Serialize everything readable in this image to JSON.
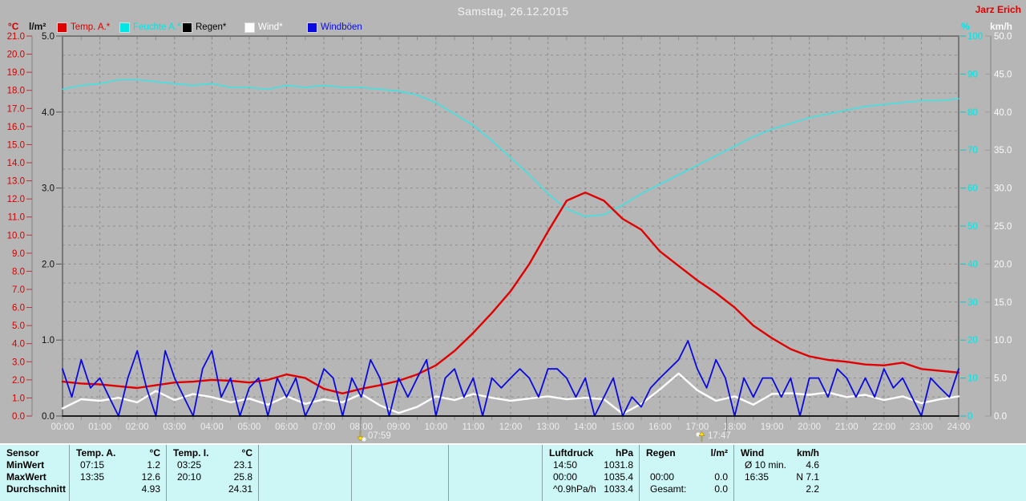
{
  "header": {
    "title": "Samstag, 26.12.2015",
    "station": "Jarz Erich",
    "unit_temp": "°C",
    "unit_rain": "l/m²",
    "unit_humidity": "%",
    "unit_wind": "km/h"
  },
  "legend": [
    {
      "label": "Temp. A.*",
      "color": "#dd0000"
    },
    {
      "label": "Feuchte A.*",
      "color": "#00e5e5"
    },
    {
      "label": "Regen*",
      "color": "#000000"
    },
    {
      "label": "Wind*",
      "color": "#ffffff"
    },
    {
      "label": "Windböen",
      "color": "#0a0ae0"
    }
  ],
  "markers": [
    {
      "time": "07:59",
      "hour": 7.983,
      "icon": "sun-down-icon"
    },
    {
      "time": "17:47",
      "hour": 17.783,
      "icon": "sun-up-icon"
    }
  ],
  "chart_data": {
    "type": "line",
    "title": "Samstag, 26.12.2015",
    "grid": true,
    "x_axis": {
      "min_hour": 0,
      "max_hour": 24,
      "labels": [
        "00:00",
        "01:00",
        "02:00",
        "03:00",
        "04:00",
        "05:00",
        "06:00",
        "07:00",
        "08:00",
        "09:00",
        "10:00",
        "11:00",
        "12:00",
        "13:00",
        "14:00",
        "15:00",
        "16:00",
        "17:00",
        "18:00",
        "19:00",
        "20:00",
        "21:00",
        "22:00",
        "23:00",
        "24:00"
      ]
    },
    "axes": {
      "temp_c": {
        "title": "°C",
        "min": 0,
        "max": 21,
        "color": "#d40000",
        "tick_labels": [
          "0.0",
          "1.0",
          "2.0",
          "3.0",
          "4.0",
          "5.0",
          "6.0",
          "7.0",
          "8.0",
          "9.0",
          "10.0",
          "11.0",
          "12.0",
          "13.0",
          "14.0",
          "15.0",
          "16.0",
          "17.0",
          "18.0",
          "19.0",
          "20.0",
          "21.0"
        ]
      },
      "rain_lm2": {
        "title": "l/m²",
        "min": 0,
        "max": 5,
        "color": "#111111",
        "tick_labels": [
          "0.0",
          "1.0",
          "2.0",
          "3.0",
          "4.0",
          "5.0"
        ]
      },
      "humidity_pct": {
        "title": "%",
        "min": 0,
        "max": 100,
        "color": "#00e5e5",
        "tick_labels": [
          "0",
          "10",
          "20",
          "30",
          "40",
          "50",
          "60",
          "70",
          "80",
          "90",
          "100"
        ]
      },
      "wind_kmh": {
        "title": "km/h",
        "min": 0,
        "max": 50,
        "color": "#fafafa",
        "tick_labels": [
          "0.0",
          "5.0",
          "10.0",
          "15.0",
          "20.0",
          "25.0",
          "30.0",
          "35.0",
          "40.0",
          "45.0",
          "50.0"
        ]
      }
    },
    "series": [
      {
        "name": "Feuchte A.",
        "axis": "humidity_pct",
        "color": "#3fe2e2",
        "width": 1.6,
        "x_step_hours": 0.5,
        "values": [
          86,
          87,
          87.5,
          88.5,
          88.5,
          88,
          87.5,
          87,
          87.5,
          86.5,
          86.5,
          86,
          87,
          86.5,
          87,
          86.5,
          86.5,
          86,
          85.5,
          84.5,
          82.5,
          79.5,
          76.5,
          72.5,
          68,
          63.5,
          58.5,
          54.5,
          52.5,
          53,
          55.5,
          58.5,
          61,
          63.5,
          66,
          68.5,
          71,
          73.5,
          75.5,
          77,
          78.5,
          79.5,
          80.5,
          81.5,
          82,
          82.5,
          83,
          83,
          83.5
        ]
      },
      {
        "name": "Temp. A.",
        "axis": "temp_c",
        "color": "#e00000",
        "width": 2.4,
        "x_step_hours": 0.5,
        "values": [
          1.9,
          1.8,
          1.75,
          1.65,
          1.55,
          1.7,
          1.85,
          1.9,
          2.0,
          1.95,
          1.85,
          2.0,
          2.3,
          2.1,
          1.5,
          1.25,
          1.5,
          1.7,
          1.95,
          2.3,
          2.8,
          3.6,
          4.6,
          5.7,
          6.9,
          8.4,
          10.2,
          11.9,
          12.35,
          11.9,
          10.9,
          10.3,
          9.1,
          8.3,
          7.5,
          6.8,
          6.0,
          5.0,
          4.3,
          3.7,
          3.3,
          3.1,
          3.0,
          2.85,
          2.8,
          2.95,
          2.6,
          2.5,
          2.4
        ]
      },
      {
        "name": "Wind",
        "axis": "wind_kmh",
        "color": "#ffffff",
        "width": 2.4,
        "x_step_hours": 0.5,
        "values": [
          1.0,
          2.2,
          2.0,
          2.4,
          1.8,
          3.3,
          2.1,
          2.9,
          2.5,
          1.8,
          2.3,
          1.5,
          2.6,
          1.6,
          2.2,
          1.8,
          2.9,
          1.4,
          0.4,
          1.2,
          2.6,
          2.1,
          2.9,
          2.4,
          2.0,
          2.3,
          2.6,
          2.2,
          2.4,
          2.2,
          0.3,
          1.6,
          3.5,
          5.6,
          3.4,
          2.0,
          2.6,
          1.5,
          2.9,
          3.0,
          2.8,
          3.1,
          2.5,
          2.8,
          2.1,
          2.6,
          1.7,
          2.2,
          2.6
        ]
      },
      {
        "name": "Windböen",
        "axis": "wind_kmh",
        "color": "#0a0ae0",
        "width": 1.8,
        "x_step_hours": 0.25,
        "values": [
          6.2,
          2.5,
          7.4,
          3.7,
          5.0,
          2.5,
          0.0,
          5.0,
          8.6,
          3.7,
          0.0,
          8.6,
          5.0,
          2.5,
          0.0,
          6.2,
          8.6,
          2.5,
          5.0,
          0.0,
          3.7,
          5.0,
          0.0,
          5.0,
          2.5,
          5.0,
          0.0,
          2.5,
          6.2,
          5.0,
          0.0,
          5.0,
          2.5,
          7.4,
          5.0,
          0.0,
          5.0,
          2.5,
          5.0,
          7.4,
          0.0,
          5.0,
          6.2,
          2.5,
          5.0,
          0.0,
          5.0,
          3.7,
          5.0,
          6.2,
          5.0,
          2.5,
          6.2,
          6.2,
          5.0,
          2.5,
          5.0,
          0.0,
          2.5,
          5.0,
          0.0,
          2.5,
          1.2,
          3.7,
          5.0,
          6.2,
          7.4,
          9.9,
          6.2,
          3.7,
          7.4,
          5.0,
          0.0,
          5.0,
          2.5,
          5.0,
          5.0,
          2.5,
          5.0,
          0.0,
          5.0,
          5.0,
          2.5,
          6.2,
          5.0,
          2.5,
          5.0,
          2.5,
          6.2,
          3.7,
          5.0,
          2.5,
          0.0,
          5.0,
          3.7,
          2.5,
          6.2
        ]
      },
      {
        "name": "Regen",
        "axis": "rain_lm2",
        "color": "#000000",
        "width": 1.5,
        "x_step_hours": 24,
        "values": [
          0.0,
          0.0
        ]
      }
    ]
  },
  "summary_table": {
    "row_labels": {
      "sensor": "Sensor",
      "min": "MinWert",
      "max": "MaxWert",
      "avg": "Durchschnitt"
    },
    "temp_a": {
      "name": "Temp. A.",
      "unit": "°C",
      "min_time": "07:15",
      "min_value": "1.2",
      "max_time": "13:35",
      "max_value": "12.6",
      "avg_value": "4.93"
    },
    "temp_i": {
      "name": "Temp. I.",
      "unit": "°C",
      "min_time": "03:25",
      "min_value": "23.1",
      "max_time": "20:10",
      "max_value": "25.8",
      "avg_value": "24.31"
    },
    "luftdruck": {
      "name": "Luftdruck",
      "unit": "hPa",
      "min_time": "14:50",
      "min_value": "1031.8",
      "max_time": "00:00",
      "max_value": "1035.4",
      "avg_label": "^0.9hPa/h",
      "avg_value": "1033.4"
    },
    "regen": {
      "name": "Regen",
      "unit": "l/m²",
      "max_time": "00:00",
      "max_value": "0.0",
      "avg_label": "Gesamt:",
      "avg_value": "0.0"
    },
    "wind": {
      "name": "Wind",
      "unit": "km/h",
      "min_label": "Ø 10 min.",
      "min_value": "4.6",
      "max_time": "16:35",
      "max_value": "N 7.1",
      "avg_value": "2.2"
    }
  }
}
